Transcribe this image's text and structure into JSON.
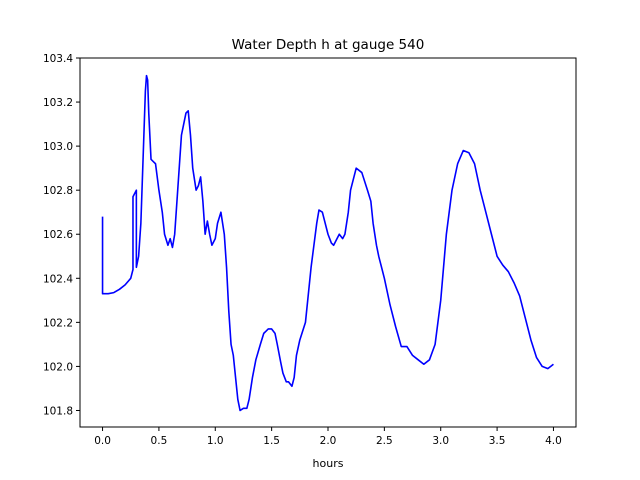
{
  "chart_data": {
    "type": "line",
    "title": "Water Depth h at gauge 540",
    "xlabel": "hours",
    "ylabel": "",
    "xlim": [
      -0.2,
      4.2
    ],
    "ylim": [
      101.725,
      103.4
    ],
    "xticks": [
      0.0,
      0.5,
      1.0,
      1.5,
      2.0,
      2.5,
      3.0,
      3.5,
      4.0
    ],
    "xtick_labels": [
      "0.0",
      "0.5",
      "1.0",
      "1.5",
      "2.0",
      "2.5",
      "3.0",
      "3.5",
      "4.0"
    ],
    "yticks": [
      101.8,
      102.0,
      102.2,
      102.4,
      102.6,
      102.8,
      103.0,
      103.2,
      103.4
    ],
    "ytick_labels": [
      "101.8",
      "102.0",
      "102.2",
      "102.4",
      "102.6",
      "102.8",
      "103.0",
      "103.2",
      "103.4"
    ],
    "grid": false,
    "legend": "none",
    "colors": {
      "line": "#0000ff",
      "axes": "#000000",
      "background": "#ffffff"
    },
    "series": [
      {
        "x": [
          0.0,
          0.0,
          0.05,
          0.1,
          0.15,
          0.2,
          0.25,
          0.27,
          0.27,
          0.3,
          0.3,
          0.32,
          0.34,
          0.36,
          0.38,
          0.39,
          0.4,
          0.41,
          0.43,
          0.45,
          0.47,
          0.5,
          0.53,
          0.55,
          0.58,
          0.6,
          0.62,
          0.64,
          0.66,
          0.68,
          0.7,
          0.72,
          0.74,
          0.76,
          0.78,
          0.8,
          0.83,
          0.85,
          0.87,
          0.89,
          0.91,
          0.93,
          0.95,
          0.97,
          1.0,
          1.02,
          1.05,
          1.08,
          1.1,
          1.12,
          1.14,
          1.16,
          1.18,
          1.2,
          1.22,
          1.25,
          1.28,
          1.3,
          1.33,
          1.36,
          1.4,
          1.43,
          1.45,
          1.47,
          1.5,
          1.53,
          1.55,
          1.58,
          1.6,
          1.63,
          1.65,
          1.68,
          1.7,
          1.72,
          1.75,
          1.8,
          1.85,
          1.9,
          1.92,
          1.95,
          2.0,
          2.03,
          2.05,
          2.08,
          2.1,
          2.13,
          2.15,
          2.18,
          2.2,
          2.25,
          2.3,
          2.35,
          2.38,
          2.4,
          2.43,
          2.45,
          2.5,
          2.55,
          2.6,
          2.65,
          2.7,
          2.75,
          2.8,
          2.85,
          2.9,
          2.95,
          3.0,
          3.05,
          3.1,
          3.15,
          3.2,
          3.25,
          3.3,
          3.35,
          3.4,
          3.45,
          3.5,
          3.55,
          3.6,
          3.65,
          3.7,
          3.75,
          3.8,
          3.85,
          3.9,
          3.95,
          4.0
        ],
        "y": [
          102.68,
          102.33,
          102.33,
          102.335,
          102.35,
          102.37,
          102.4,
          102.44,
          102.77,
          102.8,
          102.45,
          102.5,
          102.65,
          102.95,
          103.25,
          103.32,
          103.3,
          103.15,
          102.94,
          102.93,
          102.92,
          102.8,
          102.7,
          102.6,
          102.55,
          102.58,
          102.54,
          102.6,
          102.75,
          102.9,
          103.05,
          103.1,
          103.15,
          103.16,
          103.05,
          102.9,
          102.8,
          102.82,
          102.86,
          102.75,
          102.6,
          102.66,
          102.6,
          102.55,
          102.58,
          102.65,
          102.7,
          102.6,
          102.45,
          102.25,
          102.1,
          102.05,
          101.95,
          101.85,
          101.8,
          101.81,
          101.81,
          101.85,
          101.95,
          102.03,
          102.1,
          102.15,
          102.16,
          102.17,
          102.17,
          102.15,
          102.1,
          102.02,
          101.97,
          101.93,
          101.93,
          101.91,
          101.95,
          102.05,
          102.12,
          102.2,
          102.45,
          102.65,
          102.71,
          102.7,
          102.6,
          102.56,
          102.55,
          102.58,
          102.6,
          102.58,
          102.6,
          102.7,
          102.8,
          102.9,
          102.88,
          102.8,
          102.75,
          102.65,
          102.55,
          102.5,
          102.4,
          102.28,
          102.18,
          102.09,
          102.09,
          102.05,
          102.03,
          102.01,
          102.03,
          102.1,
          102.3,
          102.6,
          102.8,
          102.92,
          102.98,
          102.97,
          102.92,
          102.8,
          102.7,
          102.6,
          102.5,
          102.46,
          102.43,
          102.38,
          102.32,
          102.22,
          102.12,
          102.04,
          102.0,
          101.99,
          102.01
        ]
      }
    ]
  }
}
